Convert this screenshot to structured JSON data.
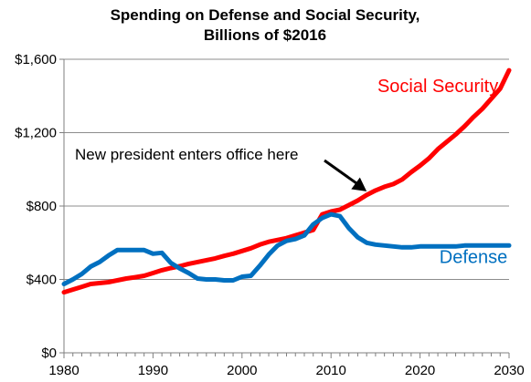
{
  "chart_data": {
    "type": "line",
    "title_line1": "Spending on Defense and Social Security,",
    "title_line2": "Billions of $2016",
    "xlim": [
      1980,
      2030
    ],
    "ylim": [
      0,
      1600
    ],
    "x_ticks": [
      1980,
      1990,
      2000,
      2010,
      2020,
      2030
    ],
    "x_tick_labels": [
      "1980",
      "1990",
      "2000",
      "2010",
      "2020",
      "2030"
    ],
    "y_ticks": [
      0,
      400,
      800,
      1200,
      1600
    ],
    "y_tick_labels": [
      "$0",
      "$400",
      "$800",
      "$1,200",
      "$1,600"
    ],
    "grid": "horizontal",
    "legend": "none",
    "annotation": {
      "text": "New president enters office here",
      "points_to": {
        "x": 2014,
        "y": 870
      }
    },
    "series": [
      {
        "name": "Social Security",
        "color": "#ff0000",
        "x": [
          1980,
          1981,
          1982,
          1983,
          1984,
          1985,
          1986,
          1987,
          1988,
          1989,
          1990,
          1991,
          1992,
          1993,
          1994,
          1995,
          1996,
          1997,
          1998,
          1999,
          2000,
          2001,
          2002,
          2003,
          2004,
          2005,
          2006,
          2007,
          2008,
          2009,
          2010,
          2011,
          2012,
          2013,
          2014,
          2015,
          2016,
          2017,
          2018,
          2019,
          2020,
          2021,
          2022,
          2023,
          2024,
          2025,
          2026,
          2027,
          2028,
          2029,
          2030
        ],
        "values": [
          330,
          345,
          360,
          375,
          380,
          385,
          395,
          405,
          412,
          420,
          435,
          450,
          462,
          472,
          485,
          495,
          505,
          515,
          528,
          540,
          555,
          570,
          590,
          605,
          615,
          625,
          640,
          655,
          670,
          755,
          770,
          780,
          805,
          830,
          860,
          885,
          905,
          920,
          945,
          985,
          1020,
          1060,
          1110,
          1150,
          1190,
          1235,
          1285,
          1330,
          1385,
          1440,
          1540
        ]
      },
      {
        "name": "Defense",
        "color": "#0070c0",
        "x": [
          1980,
          1981,
          1982,
          1983,
          1984,
          1985,
          1986,
          1987,
          1988,
          1989,
          1990,
          1991,
          1992,
          1993,
          1994,
          1995,
          1996,
          1997,
          1998,
          1999,
          2000,
          2001,
          2002,
          2003,
          2004,
          2005,
          2006,
          2007,
          2008,
          2009,
          2010,
          2011,
          2012,
          2013,
          2014,
          2015,
          2016,
          2017,
          2018,
          2019,
          2020,
          2021,
          2022,
          2023,
          2024,
          2025,
          2026,
          2027,
          2028,
          2029,
          2030
        ],
        "values": [
          375,
          400,
          430,
          470,
          495,
          530,
          560,
          560,
          560,
          560,
          540,
          545,
          490,
          460,
          435,
          405,
          400,
          400,
          395,
          395,
          415,
          420,
          475,
          535,
          585,
          610,
          620,
          640,
          700,
          735,
          755,
          745,
          680,
          630,
          600,
          590,
          585,
          580,
          575,
          575,
          580,
          580,
          580,
          580,
          580,
          585,
          585,
          585,
          585,
          585,
          585
        ]
      }
    ]
  }
}
